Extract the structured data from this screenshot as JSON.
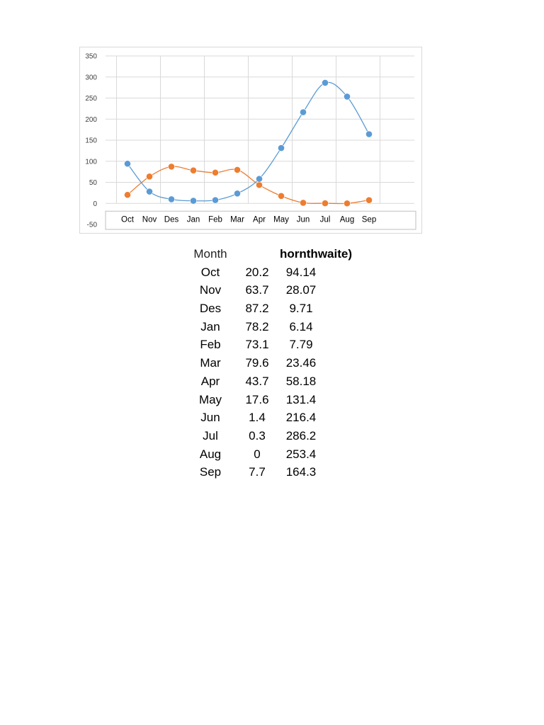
{
  "chart_data": {
    "type": "line",
    "smooth": true,
    "categories": [
      "Oct",
      "Nov",
      "Des",
      "Jan",
      "Feb",
      "Mar",
      "Apr",
      "May",
      "Jun",
      "Jul",
      "Aug",
      "Sep"
    ],
    "series": [
      {
        "color": "#ed7d31",
        "values": [
          20.2,
          63.7,
          87.2,
          78.2,
          73.1,
          79.6,
          43.7,
          17.6,
          1.4,
          0.3,
          0,
          7.7
        ]
      },
      {
        "color": "#5b9bd5",
        "values": [
          94.14,
          28.07,
          9.71,
          6.14,
          7.79,
          23.46,
          58.18,
          131.4,
          216.4,
          286.2,
          253.4,
          164.3
        ]
      }
    ],
    "ylim": [
      -50,
      350
    ],
    "yticks": [
      350,
      300,
      250,
      200,
      150,
      100,
      50,
      0,
      -50
    ],
    "grid": true,
    "legend": "none"
  },
  "table": {
    "header": {
      "month": "Month",
      "col2": "hornthwaite)"
    },
    "rows": [
      {
        "month": "Oct",
        "a": "20.2",
        "b": "94.14"
      },
      {
        "month": "Nov",
        "a": "63.7",
        "b": "28.07"
      },
      {
        "month": "Des",
        "a": "87.2",
        "b": "9.71"
      },
      {
        "month": "Jan",
        "a": "78.2",
        "b": "6.14"
      },
      {
        "month": "Feb",
        "a": "73.1",
        "b": "7.79"
      },
      {
        "month": "Mar",
        "a": "79.6",
        "b": "23.46"
      },
      {
        "month": "Apr",
        "a": "43.7",
        "b": "58.18"
      },
      {
        "month": "May",
        "a": "17.6",
        "b": "131.4"
      },
      {
        "month": "Jun",
        "a": "1.4",
        "b": "216.4"
      },
      {
        "month": "Jul",
        "a": "0.3",
        "b": "286.2"
      },
      {
        "month": "Aug",
        "a": "0",
        "b": "253.4"
      },
      {
        "month": "Sep",
        "a": "7.7",
        "b": "164.3"
      }
    ]
  }
}
